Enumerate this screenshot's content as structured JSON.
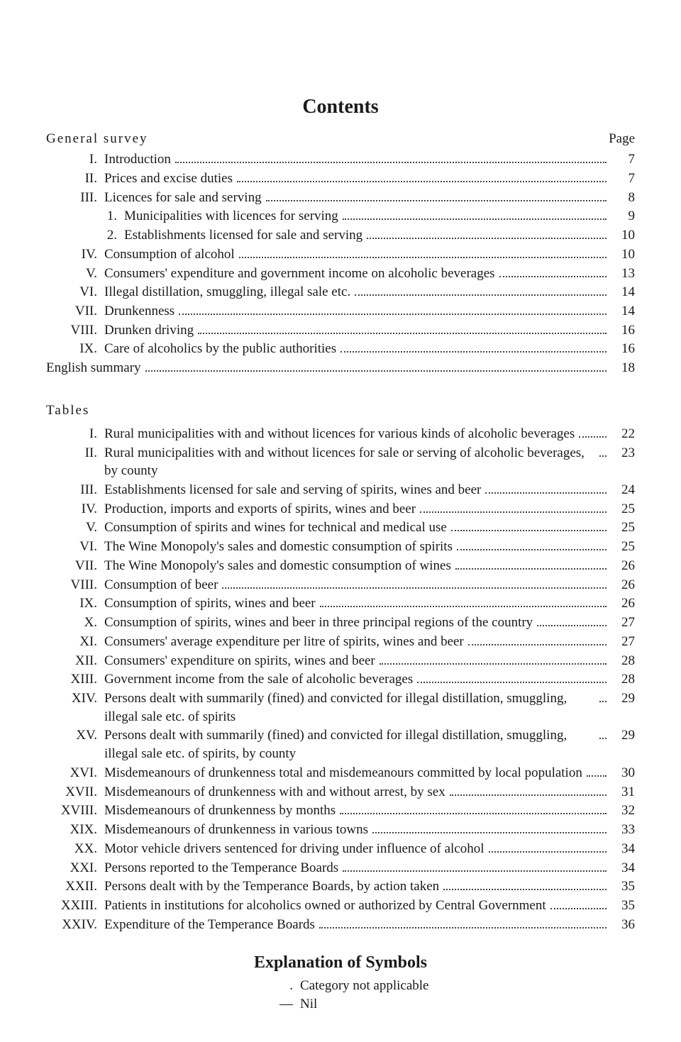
{
  "title": "Contents",
  "general_head_left": "General survey",
  "general_head_right": "Page",
  "general": [
    {
      "num": "I.",
      "label": "Introduction",
      "page": "7"
    },
    {
      "num": "II.",
      "label": "Prices and excise duties",
      "page": "7"
    },
    {
      "num": "III.",
      "label": "Licences for sale and serving",
      "page": "8"
    }
  ],
  "general_sub": [
    {
      "num": "1.",
      "label": "Municipalities with licences for serving",
      "page": "9"
    },
    {
      "num": "2.",
      "label": "Establishments licensed for sale and serving",
      "page": "10"
    }
  ],
  "general2": [
    {
      "num": "IV.",
      "label": "Consumption of alcohol",
      "page": "10"
    },
    {
      "num": "V.",
      "label": "Consumers' expenditure and government income on alcoholic beverages",
      "page": "13"
    },
    {
      "num": "VI.",
      "label": "Illegal distillation, smuggling, illegal sale etc.",
      "page": "14"
    },
    {
      "num": "VII.",
      "label": "Drunkenness",
      "page": "14"
    },
    {
      "num": "VIII.",
      "label": "Drunken driving",
      "page": "16"
    },
    {
      "num": "IX.",
      "label": "Care of alcoholics by the public authorities",
      "page": "16"
    }
  ],
  "english_summary": {
    "label": "English summary",
    "page": "18"
  },
  "tables_head": "Tables",
  "tables": [
    {
      "num": "I.",
      "label": "Rural municipalities with and without licences for various kinds of alcoholic beverages",
      "page": "22"
    },
    {
      "num": "II.",
      "label": "Rural municipalities with and without licences for sale or serving of alcoholic beverages, by county",
      "page": "23"
    },
    {
      "num": "III.",
      "label": "Establishments licensed for sale and serving of spirits, wines and beer",
      "page": "24"
    },
    {
      "num": "IV.",
      "label": "Production, imports and exports of spirits, wines and beer",
      "page": "25"
    },
    {
      "num": "V.",
      "label": "Consumption of spirits and wines for technical and medical use",
      "page": "25"
    },
    {
      "num": "VI.",
      "label": "The Wine Monopoly's sales and domestic consumption of spirits",
      "page": "25"
    },
    {
      "num": "VII.",
      "label": "The Wine Monopoly's sales and domestic consumption of wines",
      "page": "26"
    },
    {
      "num": "VIII.",
      "label": "Consumption of beer",
      "page": "26"
    },
    {
      "num": "IX.",
      "label": "Consumption of spirits, wines and beer",
      "page": "26"
    },
    {
      "num": "X.",
      "label": "Consumption of spirits, wines and beer in three principal regions of the country",
      "page": "27"
    },
    {
      "num": "XI.",
      "label": "Consumers' average expenditure per litre of spirits, wines and beer",
      "page": "27"
    },
    {
      "num": "XII.",
      "label": "Consumers' expenditure on spirits, wines and beer",
      "page": "28"
    },
    {
      "num": "XIII.",
      "label": "Government income from the sale of alcoholic beverages",
      "page": "28"
    },
    {
      "num": "XIV.",
      "label": "Persons dealt with summarily (fined) and convicted for illegal distillation, smuggling, illegal sale etc. of spirits",
      "page": "29"
    },
    {
      "num": "XV.",
      "label": "Persons dealt with summarily (fined) and convicted for illegal distillation, smuggling, illegal sale etc. of spirits, by county",
      "page": "29"
    },
    {
      "num": "XVI.",
      "label": "Misdemeanours of drunkenness total and misdemeanours committed by local population",
      "page": "30"
    },
    {
      "num": "XVII.",
      "label": "Misdemeanours of drunkenness with and without arrest, by sex",
      "page": "31"
    },
    {
      "num": "XVIII.",
      "label": "Misdemeanours of drunkenness by months",
      "page": "32"
    },
    {
      "num": "XIX.",
      "label": "Misdemeanours of drunkenness in various towns",
      "page": "33"
    },
    {
      "num": "XX.",
      "label": "Motor vehicle drivers sentenced for driving under influence of alcohol",
      "page": "34"
    },
    {
      "num": "XXI.",
      "label": "Persons reported to the Temperance Boards",
      "page": "34"
    },
    {
      "num": "XXII.",
      "label": "Persons dealt with by the Temperance Boards, by action taken",
      "page": "35"
    },
    {
      "num": "XXIII.",
      "label": "Patients in institutions for alcoholics owned or authorized by Central Government",
      "page": "35"
    },
    {
      "num": "XXIV.",
      "label": "Expenditure of the Temperance Boards",
      "page": "36"
    }
  ],
  "explain_title": "Explanation of Symbols",
  "symbols": [
    {
      "mark": ".",
      "desc": "Category not applicable"
    },
    {
      "mark": "—",
      "desc": "Nil"
    }
  ]
}
